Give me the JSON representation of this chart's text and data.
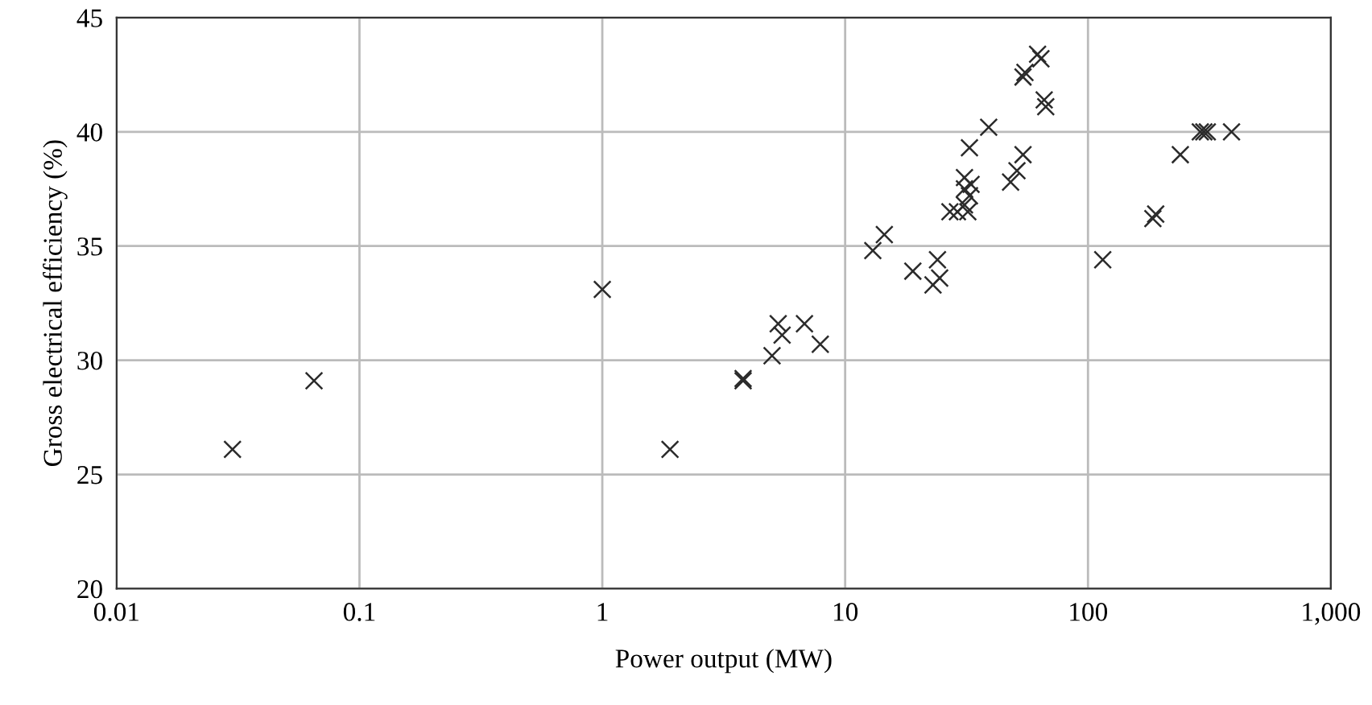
{
  "chart_data": {
    "type": "scatter",
    "xlabel": "Power output (MW)",
    "ylabel": "Gross electrical efficiency (%)",
    "log": "x",
    "grid": true,
    "marker": "cross",
    "legend": false,
    "xlim": [
      0.01,
      1000
    ],
    "ylim": [
      20,
      45
    ],
    "xticks": [
      0.01,
      0.1,
      1,
      10,
      100,
      {
        "value": 1000,
        "label": "1,000"
      }
    ],
    "yticks": [
      20,
      25,
      30,
      35,
      40,
      45
    ],
    "series": [
      {
        "color": "#2b2b2b",
        "x": [
          0.03,
          0.065,
          1.0,
          1.9,
          3.8,
          3.8,
          5.0,
          5.3,
          5.5,
          6.8,
          7.9,
          13,
          14.5,
          19,
          23,
          24,
          24.5,
          27,
          29,
          31,
          31,
          31,
          32,
          32.5,
          32.5,
          33,
          39,
          48,
          51,
          54,
          54,
          55,
          62,
          64,
          66,
          67,
          115,
          185,
          190,
          240,
          290,
          300,
          310,
          390
        ],
        "values": [
          26.1,
          29.1,
          33.1,
          26.1,
          29.1,
          29.2,
          30.2,
          31.6,
          31.1,
          31.6,
          30.7,
          34.8,
          35.5,
          33.9,
          33.3,
          34.4,
          33.6,
          36.5,
          36.5,
          38.0,
          37.5,
          36.8,
          36.5,
          37.2,
          39.3,
          37.7,
          40.2,
          37.8,
          38.3,
          39.0,
          42.4,
          42.6,
          43.4,
          43.2,
          41.4,
          41.1,
          34.4,
          36.2,
          36.4,
          39.0,
          40.0,
          40.0,
          40.0,
          40.0
        ]
      }
    ]
  }
}
